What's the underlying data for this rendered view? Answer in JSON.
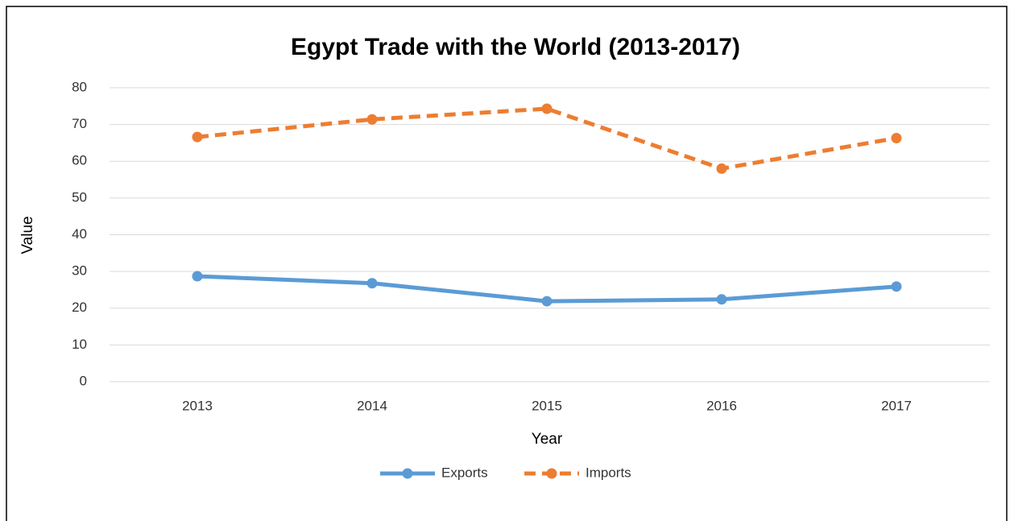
{
  "chart_data": {
    "type": "line",
    "title": "Egypt Trade with the World (2013-2017)",
    "x_label": "Year",
    "y_label": "Value",
    "categories": [
      "2013",
      "2014",
      "2015",
      "2016",
      "2017"
    ],
    "series": [
      {
        "name": "Exports",
        "color": "#5b9bd5",
        "dash": "solid",
        "values": [
          28.7,
          26.8,
          21.9,
          22.4,
          25.9
        ]
      },
      {
        "name": "Imports",
        "color": "#ed7d31",
        "dash": "dashed",
        "values": [
          66.6,
          71.4,
          74.3,
          58.0,
          66.3
        ]
      }
    ],
    "ylim": [
      0,
      80
    ],
    "yticks": [
      0,
      10,
      20,
      30,
      40,
      50,
      60,
      70,
      80
    ],
    "grid": true,
    "legend": "bottom"
  }
}
